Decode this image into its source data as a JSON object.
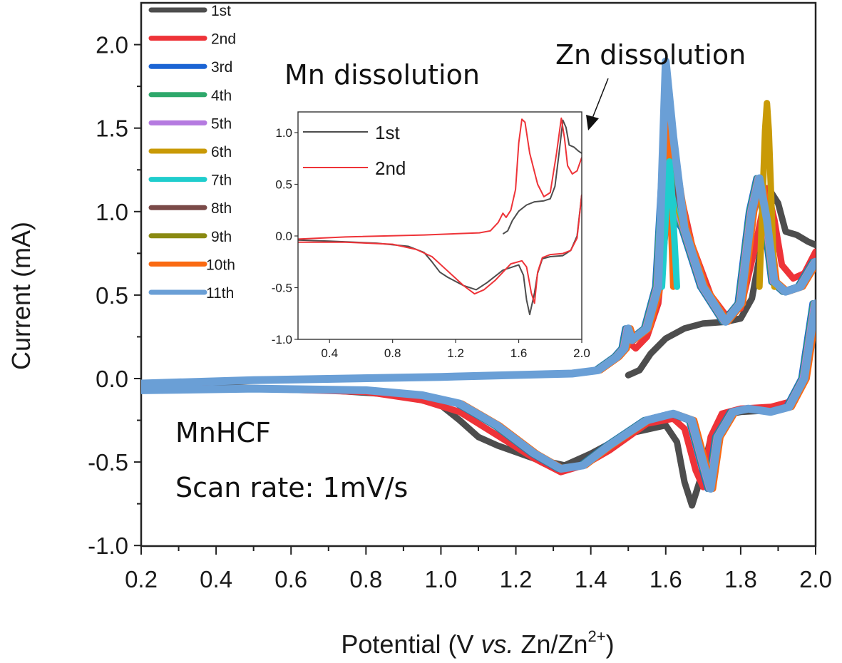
{
  "chart_data": {
    "type": "line",
    "title": "",
    "xlabel_parts": [
      "Potential (V ",
      "vs.",
      " Zn/Zn",
      "2+",
      ")"
    ],
    "xlabel": "Potential (V vs. Zn/Zn2+)",
    "ylabel": "Current (mA)",
    "xlim": [
      0.2,
      2.0
    ],
    "ylim": [
      -1.0,
      2.2
    ],
    "xticks": [
      "0.2",
      "0.4",
      "0.6",
      "0.8",
      "1.0",
      "1.2",
      "1.4",
      "1.6",
      "1.8",
      "2.0"
    ],
    "yticks": [
      "-1.0",
      "-0.5",
      "0.0",
      "0.5",
      "1.0",
      "1.5",
      "2.0"
    ],
    "legend_position": "top-left",
    "annotations": {
      "sample": "MnHCF",
      "scan_rate": "Scan rate: 1mV/s",
      "mn_label": "Mn dissolution",
      "zn_label": "Zn dissolution"
    },
    "series": [
      {
        "name": "1st",
        "color": "#4d4d4d",
        "anodic": [
          [
            1.5,
            0.02
          ],
          [
            1.53,
            0.05
          ],
          [
            1.56,
            0.15
          ],
          [
            1.6,
            0.24
          ],
          [
            1.65,
            0.3
          ],
          [
            1.7,
            0.33
          ],
          [
            1.76,
            0.34
          ],
          [
            1.8,
            0.36
          ],
          [
            1.83,
            0.48
          ],
          [
            1.86,
            0.85
          ],
          [
            1.88,
            1.12
          ],
          [
            1.9,
            1.05
          ],
          [
            1.92,
            0.88
          ],
          [
            1.95,
            0.86
          ],
          [
            1.98,
            0.82
          ],
          [
            2.0,
            0.8
          ]
        ],
        "cathodic": [
          [
            2.0,
            0.4
          ],
          [
            1.97,
            0.0
          ],
          [
            1.93,
            -0.14
          ],
          [
            1.88,
            -0.19
          ],
          [
            1.8,
            -0.2
          ],
          [
            1.75,
            -0.22
          ],
          [
            1.72,
            -0.36
          ],
          [
            1.7,
            -0.55
          ],
          [
            1.67,
            -0.76
          ],
          [
            1.65,
            -0.62
          ],
          [
            1.63,
            -0.38
          ],
          [
            1.6,
            -0.28
          ],
          [
            1.5,
            -0.33
          ],
          [
            1.4,
            -0.45
          ],
          [
            1.33,
            -0.52
          ],
          [
            1.25,
            -0.48
          ],
          [
            1.15,
            -0.4
          ],
          [
            1.1,
            -0.35
          ],
          [
            1.05,
            -0.25
          ],
          [
            1.0,
            -0.16
          ],
          [
            0.9,
            -0.1
          ],
          [
            0.7,
            -0.07
          ],
          [
            0.4,
            -0.05
          ],
          [
            0.2,
            -0.04
          ]
        ]
      },
      {
        "name": "2nd",
        "color": "#ee3338",
        "anodic": [
          [
            0.2,
            -0.03
          ],
          [
            0.5,
            -0.01
          ],
          [
            1.0,
            0.01
          ],
          [
            1.35,
            0.03
          ],
          [
            1.42,
            0.05
          ],
          [
            1.47,
            0.13
          ],
          [
            1.5,
            0.22
          ],
          [
            1.52,
            0.18
          ],
          [
            1.55,
            0.25
          ],
          [
            1.58,
            0.45
          ],
          [
            1.6,
            0.9
          ],
          [
            1.62,
            1.13
          ],
          [
            1.64,
            1.1
          ],
          [
            1.67,
            0.8
          ],
          [
            1.72,
            0.5
          ],
          [
            1.76,
            0.38
          ],
          [
            1.8,
            0.42
          ],
          [
            1.84,
            0.8
          ],
          [
            1.87,
            1.14
          ],
          [
            1.89,
            0.95
          ],
          [
            1.91,
            0.68
          ],
          [
            1.94,
            0.6
          ],
          [
            1.97,
            0.63
          ],
          [
            2.0,
            0.76
          ]
        ],
        "cathodic": [
          [
            2.0,
            0.4
          ],
          [
            1.97,
            -0.02
          ],
          [
            1.93,
            -0.14
          ],
          [
            1.88,
            -0.17
          ],
          [
            1.8,
            -0.18
          ],
          [
            1.75,
            -0.21
          ],
          [
            1.72,
            -0.35
          ],
          [
            1.7,
            -0.65
          ],
          [
            1.68,
            -0.55
          ],
          [
            1.65,
            -0.3
          ],
          [
            1.62,
            -0.24
          ],
          [
            1.55,
            -0.27
          ],
          [
            1.45,
            -0.43
          ],
          [
            1.38,
            -0.52
          ],
          [
            1.32,
            -0.56
          ],
          [
            1.25,
            -0.48
          ],
          [
            1.15,
            -0.34
          ],
          [
            1.05,
            -0.2
          ],
          [
            0.95,
            -0.13
          ],
          [
            0.8,
            -0.08
          ],
          [
            0.5,
            -0.06
          ],
          [
            0.2,
            -0.06
          ]
        ]
      },
      {
        "name": "3rd",
        "color": "#1b64d4"
      },
      {
        "name": "4th",
        "color": "#2ea86b"
      },
      {
        "name": "5th",
        "color": "#b57ae0"
      },
      {
        "name": "6th",
        "color": "#c99a06"
      },
      {
        "name": "7th",
        "color": "#1fcdcd"
      },
      {
        "name": "8th",
        "color": "#7a4a48"
      },
      {
        "name": "9th",
        "color": "#8a8a12"
      },
      {
        "name": "10th",
        "color": "#fa6a12"
      },
      {
        "name": "11th",
        "color": "#6a9fd6",
        "anodic": [
          [
            0.2,
            -0.03
          ],
          [
            0.5,
            -0.01
          ],
          [
            1.0,
            0.01
          ],
          [
            1.35,
            0.03
          ],
          [
            1.42,
            0.05
          ],
          [
            1.47,
            0.13
          ],
          [
            1.49,
            0.18
          ],
          [
            1.5,
            0.3
          ],
          [
            1.51,
            0.23
          ],
          [
            1.55,
            0.3
          ],
          [
            1.58,
            0.55
          ],
          [
            1.6,
            1.9
          ],
          [
            1.62,
            1.45
          ],
          [
            1.65,
            0.9
          ],
          [
            1.7,
            0.55
          ],
          [
            1.76,
            0.34
          ],
          [
            1.8,
            0.45
          ],
          [
            1.83,
            1.0
          ],
          [
            1.85,
            1.2
          ],
          [
            1.87,
            0.95
          ],
          [
            1.89,
            0.58
          ],
          [
            1.92,
            0.52
          ],
          [
            1.96,
            0.55
          ],
          [
            2.0,
            0.7
          ]
        ],
        "cathodic": [
          [
            2.0,
            0.45
          ],
          [
            1.97,
            0.0
          ],
          [
            1.93,
            -0.17
          ],
          [
            1.88,
            -0.2
          ],
          [
            1.82,
            -0.18
          ],
          [
            1.78,
            -0.2
          ],
          [
            1.74,
            -0.35
          ],
          [
            1.72,
            -0.66
          ],
          [
            1.7,
            -0.5
          ],
          [
            1.67,
            -0.25
          ],
          [
            1.62,
            -0.21
          ],
          [
            1.55,
            -0.25
          ],
          [
            1.45,
            -0.4
          ],
          [
            1.38,
            -0.52
          ],
          [
            1.32,
            -0.54
          ],
          [
            1.25,
            -0.45
          ],
          [
            1.15,
            -0.28
          ],
          [
            1.05,
            -0.15
          ],
          [
            0.95,
            -0.1
          ],
          [
            0.8,
            -0.07
          ],
          [
            0.5,
            -0.06
          ],
          [
            0.2,
            -0.07
          ]
        ]
      }
    ],
    "extra_peaks": [
      {
        "series": "6th",
        "x": 1.87,
        "y": 1.65
      },
      {
        "series": "10th",
        "x": 1.6,
        "y": 1.68
      },
      {
        "series": "7th",
        "x": 1.61,
        "y": 1.3
      }
    ],
    "inset": {
      "xlim": [
        0.2,
        2.0
      ],
      "ylim": [
        -1.0,
        1.2
      ],
      "xticks": [
        "0.4",
        "0.8",
        "1.2",
        "1.6",
        "2.0"
      ],
      "yticks": [
        "-1.0",
        "-0.5",
        "0.0",
        "0.5",
        "1.0"
      ],
      "legend": [
        {
          "name": "1st",
          "color": "#4d4d4d"
        },
        {
          "name": "2nd",
          "color": "#ee3338"
        }
      ]
    }
  }
}
